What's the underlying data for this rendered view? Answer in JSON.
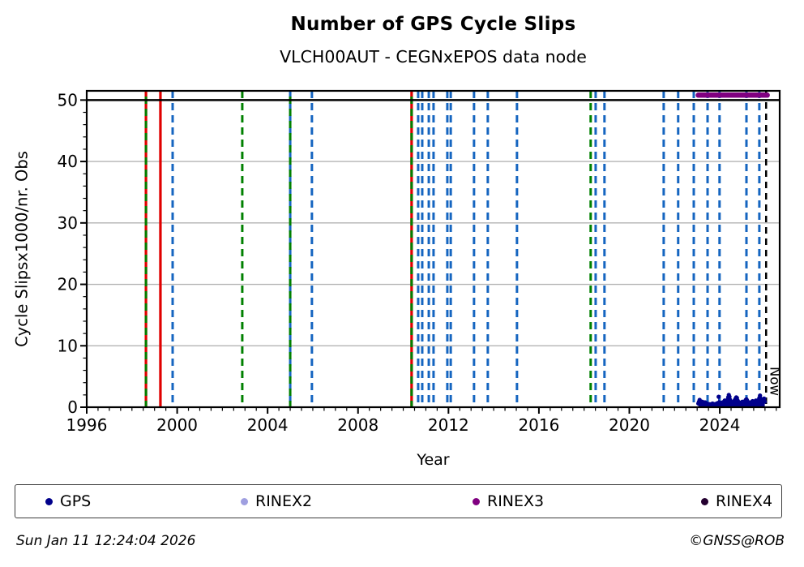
{
  "header": {
    "title": "Number of GPS Cycle Slips",
    "subtitle": "VLCH00AUT - CEGNxEPOS data node"
  },
  "footer": {
    "timestamp": "Sun Jan 11 12:24:04 2026",
    "credit": "©GNSS@ROB"
  },
  "legend": {
    "items": [
      {
        "label": "GPS",
        "color": "#00008b"
      },
      {
        "label": "RINEX2",
        "color": "#9f9fe0"
      },
      {
        "label": "RINEX3",
        "color": "#800080"
      },
      {
        "label": "RINEX4",
        "color": "#240030"
      }
    ]
  },
  "chart_data": {
    "type": "scatter",
    "title": "Number of GPS Cycle Slips",
    "subtitle": "VLCH00AUT - CEGNxEPOS data node",
    "xlabel": "Year",
    "ylabel": "Cycle Slipsx1000/nr. Obs",
    "xlim": [
      1996,
      2026.65
    ],
    "ylim": [
      0,
      51.5
    ],
    "xticks_major": [
      1996,
      2000,
      2004,
      2008,
      2012,
      2016,
      2020,
      2024
    ],
    "x_minor_step": 0.5,
    "yticks_major": [
      0,
      10,
      20,
      30,
      40,
      50
    ],
    "y_minor_step": 2,
    "grid": "horizontal-major-only",
    "grid_color": "#b3b3b3",
    "hline_y": 50,
    "colors": {
      "blue": "#1565c0",
      "green": "#008000",
      "red": "#e00000",
      "black": "#000000",
      "gps": "#00008b",
      "rinex3": "#800080"
    },
    "now": {
      "year": 2026.05,
      "label": "Now"
    },
    "event_lines": [
      {
        "year": 1998.62,
        "color": "red",
        "style": "solid"
      },
      {
        "year": 1998.62,
        "color": "green",
        "style": "dashed",
        "dashoffset": 8
      },
      {
        "year": 1999.26,
        "color": "red",
        "style": "solid"
      },
      {
        "year": 1999.8,
        "color": "blue",
        "style": "dashed"
      },
      {
        "year": 2002.88,
        "color": "green",
        "style": "dashed"
      },
      {
        "year": 2005.0,
        "color": "blue",
        "style": "dashed"
      },
      {
        "year": 2005.0,
        "color": "green",
        "style": "dashed",
        "dashoffset": 8
      },
      {
        "year": 2005.96,
        "color": "blue",
        "style": "dashed"
      },
      {
        "year": 2010.37,
        "color": "red",
        "style": "solid"
      },
      {
        "year": 2010.37,
        "color": "green",
        "style": "dashed",
        "dashoffset": 8
      },
      {
        "year": 2010.66,
        "color": "blue",
        "style": "dashed"
      },
      {
        "year": 2010.84,
        "color": "blue",
        "style": "dashed"
      },
      {
        "year": 2011.13,
        "color": "blue",
        "style": "dashed"
      },
      {
        "year": 2011.34,
        "color": "blue",
        "style": "dashed"
      },
      {
        "year": 2011.95,
        "color": "blue",
        "style": "dashed"
      },
      {
        "year": 2012.1,
        "color": "blue",
        "style": "dashed"
      },
      {
        "year": 2013.13,
        "color": "blue",
        "style": "dashed"
      },
      {
        "year": 2013.74,
        "color": "blue",
        "style": "dashed"
      },
      {
        "year": 2015.03,
        "color": "blue",
        "style": "dashed"
      },
      {
        "year": 2018.29,
        "color": "green",
        "style": "dashed"
      },
      {
        "year": 2018.51,
        "color": "blue",
        "style": "dashed"
      },
      {
        "year": 2018.9,
        "color": "blue",
        "style": "dashed"
      },
      {
        "year": 2021.52,
        "color": "blue",
        "style": "dashed"
      },
      {
        "year": 2022.16,
        "color": "blue",
        "style": "dashed"
      },
      {
        "year": 2022.85,
        "color": "blue",
        "style": "dashed"
      },
      {
        "year": 2023.46,
        "color": "blue",
        "style": "dashed"
      },
      {
        "year": 2023.99,
        "color": "blue",
        "style": "dashed"
      },
      {
        "year": 2025.18,
        "color": "blue",
        "style": "dashed"
      },
      {
        "year": 2025.75,
        "color": "blue",
        "style": "dashed"
      }
    ],
    "rinex3_line": {
      "y": 50.8,
      "from": 2023.05,
      "to": 2026.1
    },
    "gps_points": [
      [
        2023.05,
        0.6
      ],
      [
        2023.08,
        0.9
      ],
      [
        2023.11,
        1.2
      ],
      [
        2023.14,
        0.8
      ],
      [
        2023.17,
        0.5
      ],
      [
        2023.2,
        0.7
      ],
      [
        2023.23,
        0.9
      ],
      [
        2023.26,
        0.6
      ],
      [
        2023.29,
        0.4
      ],
      [
        2023.32,
        0.6
      ],
      [
        2023.35,
        0.8
      ],
      [
        2023.38,
        0.5
      ],
      [
        2023.41,
        0.4
      ],
      [
        2023.44,
        0.6
      ],
      [
        2023.47,
        0.5
      ],
      [
        2023.5,
        0.4
      ],
      [
        2023.53,
        0.5
      ],
      [
        2023.56,
        0.4
      ],
      [
        2023.59,
        0.3
      ],
      [
        2023.62,
        0.5
      ],
      [
        2023.65,
        0.4
      ],
      [
        2023.68,
        0.6
      ],
      [
        2023.71,
        0.5
      ],
      [
        2023.74,
        0.4
      ],
      [
        2023.77,
        0.5
      ],
      [
        2023.8,
        0.4
      ],
      [
        2023.83,
        0.5
      ],
      [
        2023.86,
        0.6
      ],
      [
        2023.89,
        0.5
      ],
      [
        2023.92,
        0.7
      ],
      [
        2023.95,
        1.7
      ],
      [
        2023.98,
        0.8
      ],
      [
        2024.01,
        0.6
      ],
      [
        2024.04,
        0.5
      ],
      [
        2024.07,
        0.7
      ],
      [
        2024.1,
        0.6
      ],
      [
        2024.13,
        0.8
      ],
      [
        2024.16,
        0.7
      ],
      [
        2024.19,
        0.9
      ],
      [
        2024.22,
        1.1
      ],
      [
        2024.25,
        0.9
      ],
      [
        2024.28,
        0.8
      ],
      [
        2024.31,
        1.0
      ],
      [
        2024.34,
        1.2
      ],
      [
        2024.37,
        1.6
      ],
      [
        2024.4,
        2.0
      ],
      [
        2024.43,
        1.7
      ],
      [
        2024.46,
        1.2
      ],
      [
        2024.49,
        0.9
      ],
      [
        2024.52,
        0.8
      ],
      [
        2024.55,
        0.7
      ],
      [
        2024.58,
        0.8
      ],
      [
        2024.61,
        0.9
      ],
      [
        2024.64,
        1.0
      ],
      [
        2024.67,
        1.2
      ],
      [
        2024.7,
        1.4
      ],
      [
        2024.73,
        1.6
      ],
      [
        2024.76,
        1.5
      ],
      [
        2024.79,
        1.1
      ],
      [
        2024.82,
        0.9
      ],
      [
        2024.85,
        0.8
      ],
      [
        2024.88,
        0.7
      ],
      [
        2024.91,
        0.6
      ],
      [
        2024.94,
        0.7
      ],
      [
        2024.97,
        0.8
      ],
      [
        2025.0,
        0.9
      ],
      [
        2025.03,
        0.8
      ],
      [
        2025.06,
        0.7
      ],
      [
        2025.09,
        0.8
      ],
      [
        2025.12,
        1.0
      ],
      [
        2025.15,
        1.2
      ],
      [
        2025.18,
        1.3
      ],
      [
        2025.21,
        1.1
      ],
      [
        2025.24,
        0.9
      ],
      [
        2025.27,
        0.8
      ],
      [
        2025.3,
        0.7
      ],
      [
        2025.33,
        0.6
      ],
      [
        2025.36,
        0.7
      ],
      [
        2025.39,
        0.8
      ],
      [
        2025.42,
        0.9
      ],
      [
        2025.45,
        1.0
      ],
      [
        2025.48,
        0.8
      ],
      [
        2025.51,
        0.7
      ],
      [
        2025.54,
        0.9
      ],
      [
        2025.57,
        1.0
      ],
      [
        2025.6,
        1.1
      ],
      [
        2025.63,
        0.9
      ],
      [
        2025.66,
        0.8
      ],
      [
        2025.69,
        1.0
      ],
      [
        2025.72,
        1.2
      ],
      [
        2025.75,
        1.5
      ],
      [
        2025.78,
        1.9
      ],
      [
        2025.81,
        1.4
      ],
      [
        2025.84,
        1.1
      ],
      [
        2025.87,
        0.9
      ],
      [
        2025.9,
        1.0
      ],
      [
        2025.93,
        1.2
      ],
      [
        2025.96,
        1.4
      ],
      [
        2025.99,
        0.9
      ]
    ]
  }
}
